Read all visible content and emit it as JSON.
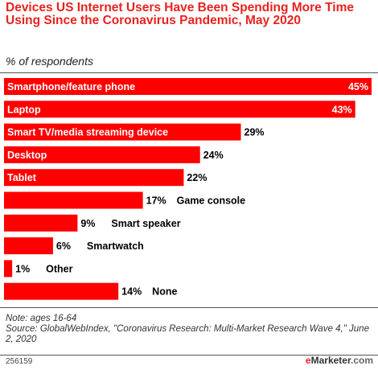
{
  "header": {
    "title": "Devices US Internet Users Have Been Spending More Time Using Since the Coronavirus Pandemic, May 2020",
    "subtitle": "% of respondents"
  },
  "chart_data": {
    "type": "bar",
    "orientation": "horizontal",
    "categories": [
      "Smartphone/feature phone",
      "Laptop",
      "Smart TV/media streaming device",
      "Desktop",
      "Tablet",
      "Game console",
      "Smart speaker",
      "Smartwatch",
      "Other",
      "None"
    ],
    "values": [
      45,
      43,
      29,
      24,
      22,
      17,
      9,
      6,
      1,
      14
    ],
    "value_labels": [
      "45%",
      "43%",
      "29%",
      "24%",
      "22%",
      "17%",
      "9%",
      "6%",
      "1%",
      "14%"
    ],
    "bar_color": "#ff0000",
    "xlim": [
      0,
      45
    ],
    "grid": false
  },
  "footer": {
    "note": "Note: ages 16-64",
    "source": "Source: GlobalWebIndex, \"Coronavirus Research: Multi-Market Research Wave 4,\" June 2, 2020",
    "id": "256159",
    "brand_e": "e",
    "brand_rest": "Marketer",
    "brand_suffix": ".com"
  }
}
